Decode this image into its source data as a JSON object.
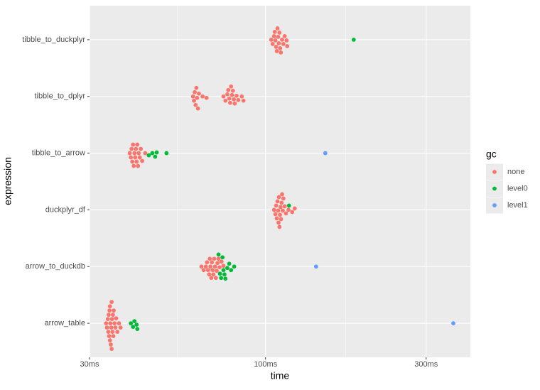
{
  "chart_data": {
    "type": "beeswarm",
    "x_label": "time",
    "y_label": "expression",
    "x_scale": "log",
    "grid": true,
    "legend": "right",
    "legend_title": "gc",
    "categories": [
      "arrow_table",
      "arrow_to_duckdb",
      "duckplyr_df",
      "tibble_to_arrow",
      "tibble_to_dplyr",
      "tibble_to_duckplyr"
    ],
    "xlim": [
      30,
      406
    ],
    "xticks": [
      {
        "value": 30,
        "label": "30ms"
      },
      {
        "value": 100,
        "label": "100ms"
      },
      {
        "value": 300,
        "label": "300ms"
      }
    ],
    "minor_xticks": [
      54.8,
      173.2
    ],
    "series": [
      {
        "name": "none",
        "color": "#F8766D",
        "x": [
          33.6,
          33.8,
          34.0,
          34.1,
          34.2,
          34.3,
          34.4,
          34.5,
          34.5,
          34.6,
          34.7,
          34.8,
          34.9,
          34.9,
          35.0,
          35.1,
          35.2,
          35.3,
          35.4,
          35.6,
          35.8,
          36.0,
          36.3,
          36.7,
          37.1,
          64.5,
          65.5,
          66.5,
          67,
          67.5,
          68,
          68.3,
          68.6,
          69,
          69.3,
          69.6,
          70,
          70.4,
          70.8,
          71.2,
          71.6,
          72,
          72.5,
          73,
          74,
          75,
          106,
          107,
          107.5,
          108,
          108.5,
          109,
          109.3,
          109.6,
          110,
          110.4,
          110.8,
          111.2,
          111.6,
          112,
          112.5,
          113,
          114,
          115,
          117,
          120,
          122.1,
          39.5,
          39.8,
          40,
          40.2,
          40.4,
          40.6,
          40.8,
          41,
          41.2,
          41.4,
          41.6,
          41.8,
          42,
          42.3,
          42.6,
          43,
          43.9,
          60.9,
          61.3,
          61.6,
          62,
          62.3,
          62.6,
          63,
          63.4,
          65,
          66.8,
          75,
          76,
          77,
          77.5,
          78,
          78.5,
          79,
          79.5,
          80,
          80.5,
          81,
          82,
          83,
          85,
          86,
          104,
          105,
          106,
          106.5,
          107,
          107.5,
          108,
          108.5,
          109,
          109.5,
          110,
          110.5,
          111,
          112,
          113,
          114,
          115.5,
          116
        ],
        "y": [
          "arrow_table",
          "arrow_table",
          "arrow_table",
          "arrow_table",
          "arrow_table",
          "arrow_table",
          "arrow_table",
          "arrow_table",
          "arrow_table",
          "arrow_table",
          "arrow_table",
          "arrow_table",
          "arrow_table",
          "arrow_table",
          "arrow_table",
          "arrow_table",
          "arrow_table",
          "arrow_table",
          "arrow_table",
          "arrow_table",
          "arrow_table",
          "arrow_table",
          "arrow_table",
          "arrow_table",
          "arrow_table",
          "arrow_to_duckdb",
          "arrow_to_duckdb",
          "arrow_to_duckdb",
          "arrow_to_duckdb",
          "arrow_to_duckdb",
          "arrow_to_duckdb",
          "arrow_to_duckdb",
          "arrow_to_duckdb",
          "arrow_to_duckdb",
          "arrow_to_duckdb",
          "arrow_to_duckdb",
          "arrow_to_duckdb",
          "arrow_to_duckdb",
          "arrow_to_duckdb",
          "arrow_to_duckdb",
          "arrow_to_duckdb",
          "arrow_to_duckdb",
          "arrow_to_duckdb",
          "arrow_to_duckdb",
          "arrow_to_duckdb",
          "arrow_to_duckdb",
          "duckplyr_df",
          "duckplyr_df",
          "duckplyr_df",
          "duckplyr_df",
          "duckplyr_df",
          "duckplyr_df",
          "duckplyr_df",
          "duckplyr_df",
          "duckplyr_df",
          "duckplyr_df",
          "duckplyr_df",
          "duckplyr_df",
          "duckplyr_df",
          "duckplyr_df",
          "duckplyr_df",
          "duckplyr_df",
          "duckplyr_df",
          "duckplyr_df",
          "duckplyr_df",
          "duckplyr_df",
          "duckplyr_df",
          "tibble_to_arrow",
          "tibble_to_arrow",
          "tibble_to_arrow",
          "tibble_to_arrow",
          "tibble_to_arrow",
          "tibble_to_arrow",
          "tibble_to_arrow",
          "tibble_to_arrow",
          "tibble_to_arrow",
          "tibble_to_arrow",
          "tibble_to_arrow",
          "tibble_to_arrow",
          "tibble_to_arrow",
          "tibble_to_arrow",
          "tibble_to_arrow",
          "tibble_to_arrow",
          "tibble_to_arrow",
          "tibble_to_dplyr",
          "tibble_to_dplyr",
          "tibble_to_dplyr",
          "tibble_to_dplyr",
          "tibble_to_dplyr",
          "tibble_to_dplyr",
          "tibble_to_dplyr",
          "tibble_to_dplyr",
          "tibble_to_dplyr",
          "tibble_to_dplyr",
          "tibble_to_dplyr",
          "tibble_to_dplyr",
          "tibble_to_dplyr",
          "tibble_to_dplyr",
          "tibble_to_dplyr",
          "tibble_to_dplyr",
          "tibble_to_dplyr",
          "tibble_to_dplyr",
          "tibble_to_dplyr",
          "tibble_to_dplyr",
          "tibble_to_dplyr",
          "tibble_to_dplyr",
          "tibble_to_dplyr",
          "tibble_to_dplyr",
          "tibble_to_dplyr",
          "tibble_to_duckplyr",
          "tibble_to_duckplyr",
          "tibble_to_duckplyr",
          "tibble_to_duckplyr",
          "tibble_to_duckplyr",
          "tibble_to_duckplyr",
          "tibble_to_duckplyr",
          "tibble_to_duckplyr",
          "tibble_to_duckplyr",
          "tibble_to_duckplyr",
          "tibble_to_duckplyr",
          "tibble_to_duckplyr",
          "tibble_to_duckplyr",
          "tibble_to_duckplyr",
          "tibble_to_duckplyr",
          "tibble_to_duckplyr",
          "tibble_to_duckplyr",
          "tibble_to_duckplyr"
        ]
      },
      {
        "name": "level0",
        "color": "#00BA38",
        "x": [
          39.8,
          40.4,
          40.8,
          41.4,
          41.6,
          72.5,
          73.2,
          73.8,
          74.5,
          75,
          75.5,
          76,
          77,
          78,
          79,
          80.7,
          117.4,
          45.0,
          46.1,
          47.0,
          47.5,
          50.8,
          182.8
        ],
        "y": [
          "arrow_table",
          "arrow_table",
          "arrow_table",
          "arrow_table",
          "arrow_table",
          "arrow_to_duckdb",
          "arrow_to_duckdb",
          "arrow_to_duckdb",
          "arrow_to_duckdb",
          "arrow_to_duckdb",
          "arrow_to_duckdb",
          "arrow_to_duckdb",
          "arrow_to_duckdb",
          "arrow_to_duckdb",
          "arrow_to_duckdb",
          "arrow_to_duckdb",
          "duckplyr_df",
          "tibble_to_arrow",
          "tibble_to_arrow",
          "tibble_to_arrow",
          "tibble_to_arrow",
          "tibble_to_arrow",
          "tibble_to_duckplyr"
        ]
      },
      {
        "name": "level1",
        "color": "#619CFF",
        "x": [
          361.4,
          141.3,
          150.5
        ],
        "y": [
          "arrow_table",
          "arrow_to_duckdb",
          "tibble_to_arrow"
        ]
      }
    ]
  }
}
